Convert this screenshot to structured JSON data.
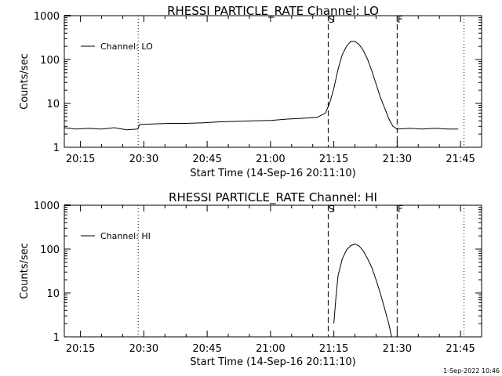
{
  "chart_data": [
    {
      "type": "line",
      "title": "RHESSI PARTICLE_RATE Channel: LO",
      "xlabel": "Start Time (14-Sep-16 20:11:10)",
      "ylabel": "Counts/sec",
      "yscale": "log",
      "ylim": [
        1,
        1000
      ],
      "xlim": [
        "20:11:10",
        "21:50:00"
      ],
      "x_ticks": [
        "20:15",
        "20:30",
        "20:45",
        "21:00",
        "21:15",
        "21:30",
        "21:45"
      ],
      "y_ticks": [
        "1",
        "10",
        "100",
        "1000"
      ],
      "legend": "Channel: LO",
      "legend_position": "top-left",
      "vlines": [
        {
          "x": "20:28:40",
          "style": "dotted",
          "label": ""
        },
        {
          "x": "21:13:40",
          "style": "dashed",
          "label": "S"
        },
        {
          "x": "21:30:00",
          "style": "dashed",
          "label": "F"
        },
        {
          "x": "21:45:50",
          "style": "dotted",
          "label": ""
        }
      ],
      "series": [
        {
          "name": "Channel: LO",
          "x": [
            "20:11:10",
            "20:14:00",
            "20:17:00",
            "20:20:00",
            "20:23:00",
            "20:26:00",
            "20:28:30",
            "20:29:00",
            "20:32:00",
            "20:36:00",
            "20:40:00",
            "20:44:00",
            "20:48:00",
            "20:52:00",
            "20:56:00",
            "21:00:00",
            "21:04:00",
            "21:08:00",
            "21:11:00",
            "21:13:00",
            "21:14:00",
            "21:15:00",
            "21:16:00",
            "21:17:00",
            "21:18:00",
            "21:19:00",
            "21:20:00",
            "21:21:00",
            "21:22:00",
            "21:23:00",
            "21:24:00",
            "21:25:00",
            "21:26:00",
            "21:27:00",
            "21:28:00",
            "21:29:00",
            "21:30:00",
            "21:33:00",
            "21:36:00",
            "21:39:00",
            "21:42:00",
            "21:44:30"
          ],
          "y": [
            2.8,
            2.6,
            2.7,
            2.6,
            2.8,
            2.5,
            2.6,
            3.3,
            3.4,
            3.5,
            3.5,
            3.6,
            3.8,
            3.9,
            4.0,
            4.1,
            4.4,
            4.6,
            4.8,
            6.0,
            10,
            22,
            60,
            130,
            200,
            260,
            260,
            220,
            160,
            100,
            55,
            28,
            14,
            8,
            4.5,
            3.0,
            2.6,
            2.7,
            2.6,
            2.7,
            2.6,
            2.6
          ]
        }
      ]
    },
    {
      "type": "line",
      "title": "RHESSI PARTICLE_RATE Channel: HI",
      "xlabel": "Start Time (14-Sep-16 20:11:10)",
      "ylabel": "Counts/sec",
      "yscale": "log",
      "ylim": [
        1,
        1000
      ],
      "xlim": [
        "20:11:10",
        "21:50:00"
      ],
      "x_ticks": [
        "20:15",
        "20:30",
        "20:45",
        "21:00",
        "21:15",
        "21:30",
        "21:45"
      ],
      "y_ticks": [
        "1",
        "10",
        "100",
        "1000"
      ],
      "legend": "Channel: HI",
      "legend_position": "top-left",
      "vlines": [
        {
          "x": "20:28:40",
          "style": "dotted",
          "label": ""
        },
        {
          "x": "21:13:40",
          "style": "dashed",
          "label": "S"
        },
        {
          "x": "21:30:00",
          "style": "dashed",
          "label": "F"
        },
        {
          "x": "21:45:50",
          "style": "dotted",
          "label": ""
        }
      ],
      "series": [
        {
          "name": "Channel: HI",
          "x": [
            "21:15:00",
            "21:15:30",
            "21:16:00",
            "21:17:00",
            "21:18:00",
            "21:19:00",
            "21:20:00",
            "21:21:00",
            "21:22:00",
            "21:23:00",
            "21:24:00",
            "21:25:00",
            "21:26:00",
            "21:27:00",
            "21:28:00",
            "21:28:40"
          ],
          "y": [
            2.0,
            8,
            25,
            60,
            95,
            120,
            130,
            118,
            90,
            60,
            38,
            20,
            10,
            4.5,
            2.0,
            1.0
          ]
        }
      ]
    }
  ],
  "footer": "1-Sep-2022 10:46"
}
